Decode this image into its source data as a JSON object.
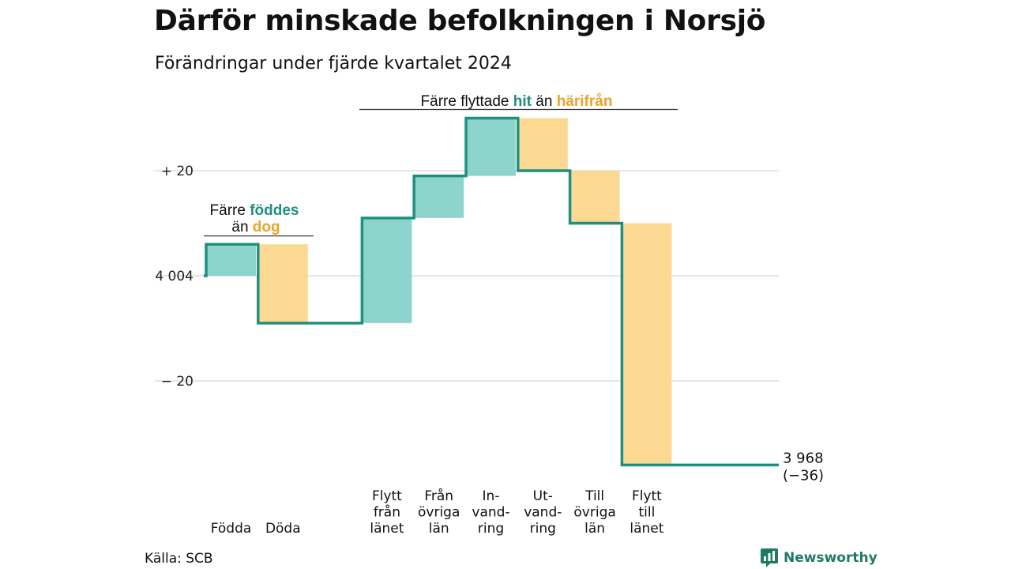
{
  "header": {
    "title": "Därför minskade befolkningen i Norsjö",
    "subtitle": "Förändringar under fjärde kvartalet 2024"
  },
  "footer": {
    "source": "Källa: SCB",
    "logo_text": "Newsworthy",
    "logo_icon": "newsworthy-logo-icon"
  },
  "colors": {
    "increase": "#8dd5cc",
    "decrease": "#fcd993",
    "line": "#1f907f",
    "highlight_in": "#1f907f",
    "highlight_out": "#eba32b",
    "grid": "#dddddd"
  },
  "annotations": {
    "births_group": {
      "prefix": "Färre",
      "word1": "föddes",
      "middle": "än",
      "word2": "dog"
    },
    "migration_group": {
      "prefix": "Färre flyttade",
      "word1": "hit",
      "middle": "än",
      "word2": "härifrån"
    }
  },
  "chart_data": {
    "type": "waterfall",
    "start_value": 4004,
    "start_label": "4 004",
    "end_label": "3 968",
    "end_change_label": "(−36)",
    "ylim": [
      -40,
      30
    ],
    "y_ticks": [
      {
        "value": 20,
        "label": "+ 20"
      },
      {
        "value": 0,
        "label": "4 004"
      },
      {
        "value": -20,
        "label": "− 20"
      }
    ],
    "steps": [
      {
        "label_lines": [
          "Födda"
        ],
        "change": 6
      },
      {
        "label_lines": [
          "Döda"
        ],
        "change": -15
      },
      {
        "label_lines": [],
        "change": 0
      },
      {
        "label_lines": [
          "Flytt",
          "från",
          "länet"
        ],
        "change": 20
      },
      {
        "label_lines": [
          "Från",
          "övriga",
          "län"
        ],
        "change": 8
      },
      {
        "label_lines": [
          "In-",
          "vand-",
          "ring"
        ],
        "change": 11
      },
      {
        "label_lines": [
          "Ut-",
          "vand-",
          "ring"
        ],
        "change": -10
      },
      {
        "label_lines": [
          "Till",
          "övriga",
          "län"
        ],
        "change": -10
      },
      {
        "label_lines": [
          "Flytt",
          "till",
          "länet"
        ],
        "change": -46
      }
    ],
    "end_change": -36
  }
}
